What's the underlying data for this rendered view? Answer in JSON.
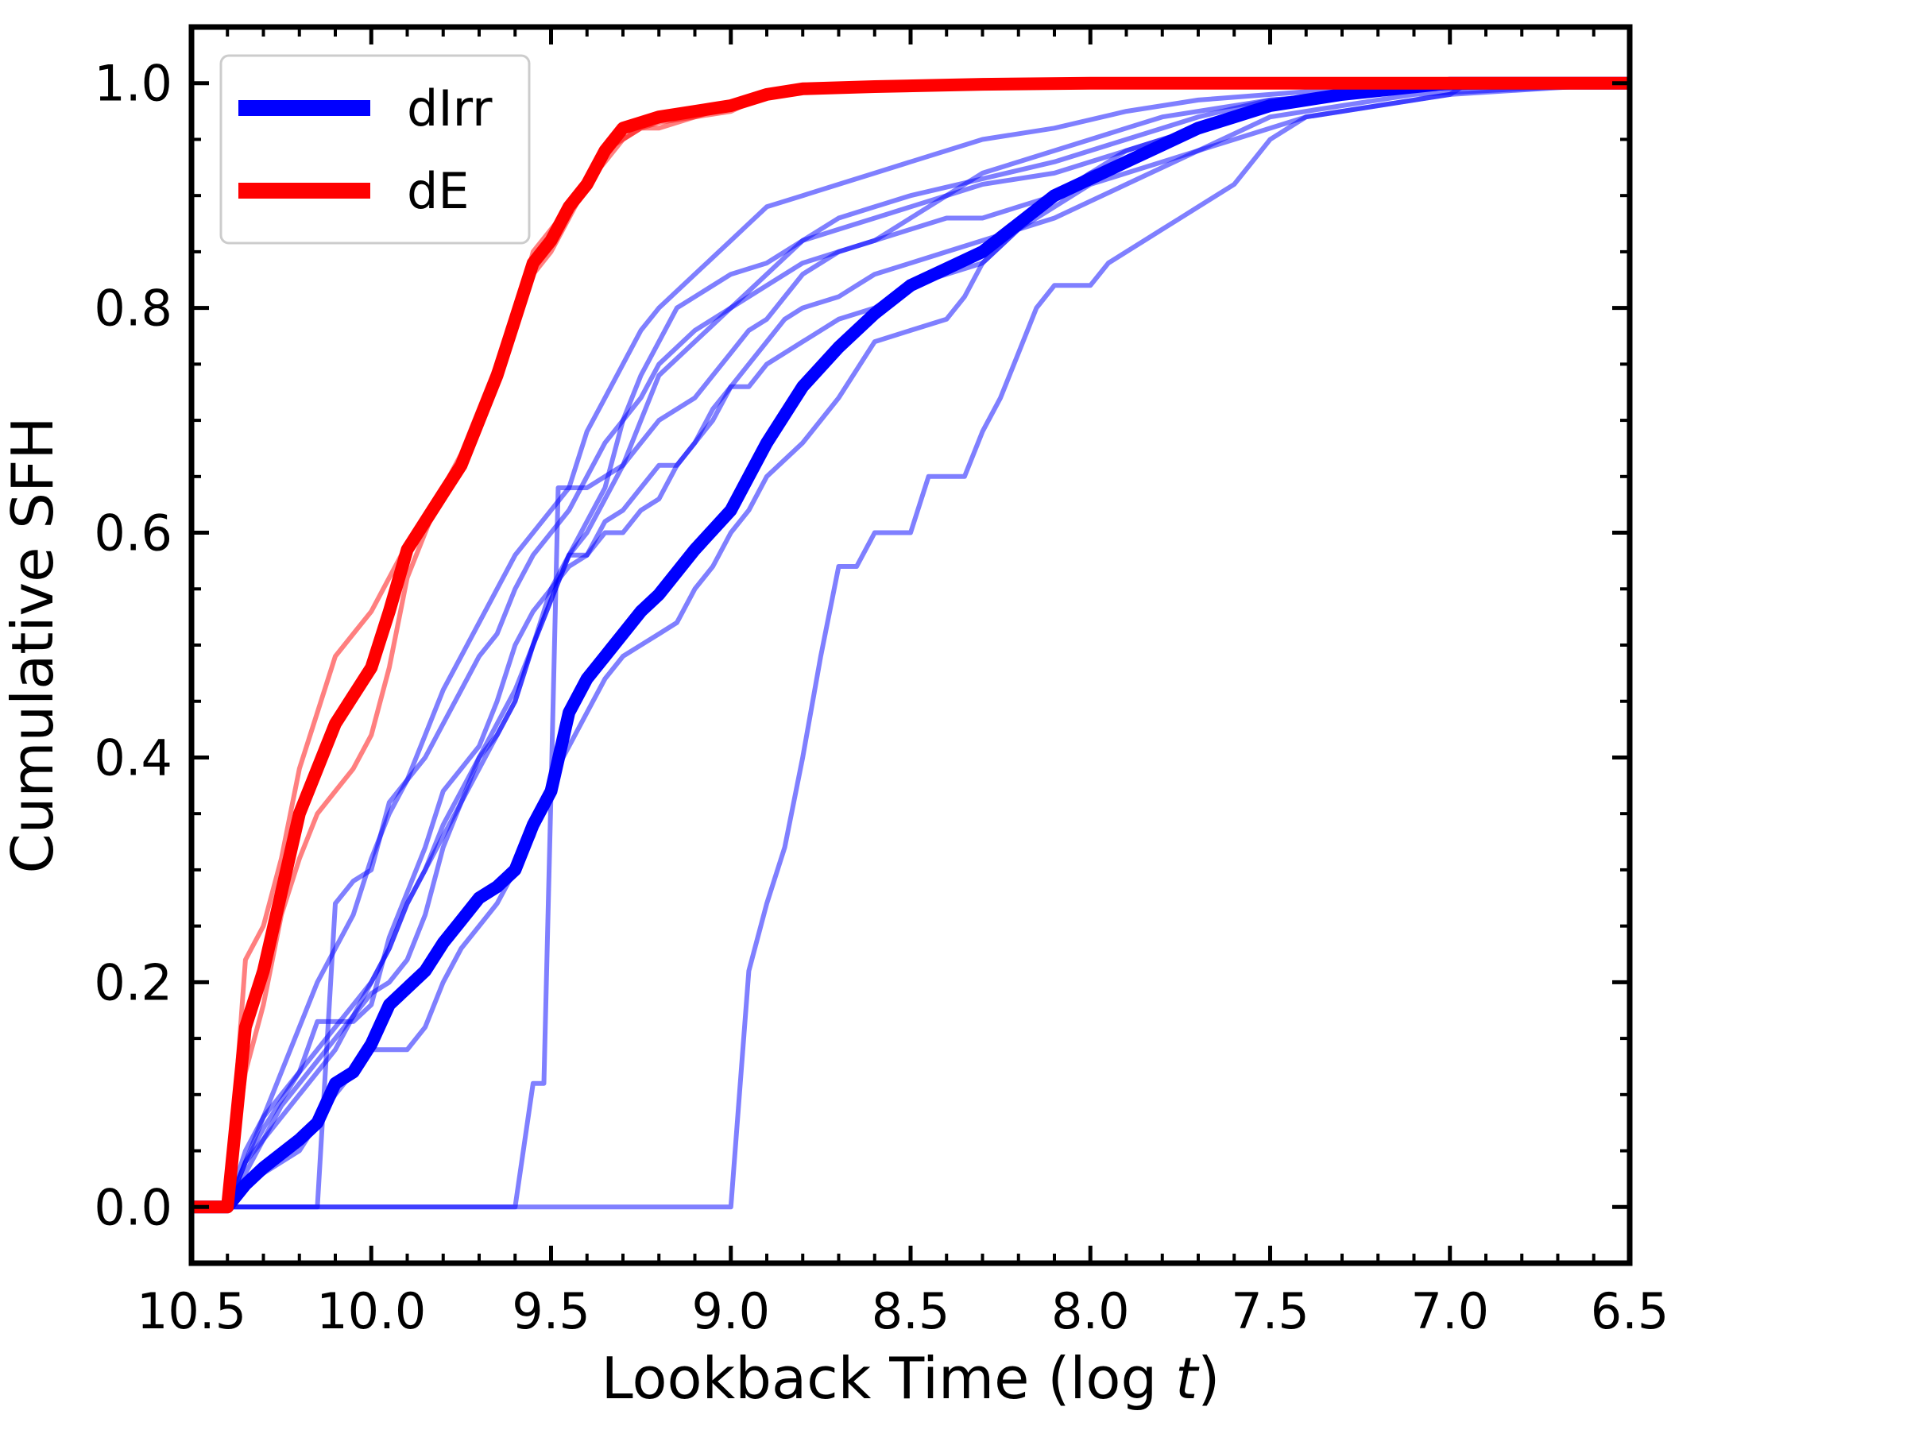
{
  "chart_data": {
    "type": "line",
    "xlabel_text": "Lookback Time (log ",
    "xlabel_var": "t",
    "xlabel_close": ")",
    "ylabel": "Cumulative SFH",
    "xlim": [
      10.5,
      6.5
    ],
    "ylim": [
      -0.05,
      1.05
    ],
    "x_ticks": [
      "10.5",
      "10.0",
      "9.5",
      "9.0",
      "8.5",
      "8.0",
      "7.5",
      "7.0",
      "6.5"
    ],
    "y_ticks": [
      "0.0",
      "0.2",
      "0.4",
      "0.6",
      "0.8",
      "1.0"
    ],
    "legend_position": "top-left",
    "colors": {
      "dIrr": "#0000ff",
      "dE": "#ff0000"
    },
    "legend": [
      {
        "label": "dIrr",
        "color": "#0000ff"
      },
      {
        "label": "dE",
        "color": "#ff0000"
      }
    ],
    "series": [
      {
        "name": "dIrr",
        "role": "mean",
        "color": "#0000ff",
        "x": [
          10.5,
          10.4,
          10.35,
          10.3,
          10.2,
          10.15,
          10.1,
          10.05,
          10.0,
          9.95,
          9.9,
          9.85,
          9.8,
          9.75,
          9.7,
          9.65,
          9.6,
          9.55,
          9.5,
          9.45,
          9.4,
          9.35,
          9.3,
          9.25,
          9.2,
          9.1,
          9.0,
          8.95,
          8.9,
          8.8,
          8.7,
          8.6,
          8.5,
          8.4,
          8.3,
          8.2,
          8.1,
          8.0,
          7.9,
          7.8,
          7.7,
          7.6,
          7.5,
          7.3,
          7.0,
          6.5
        ],
        "y": [
          0,
          0,
          0.02,
          0.035,
          0.06,
          0.075,
          0.11,
          0.12,
          0.145,
          0.18,
          0.195,
          0.21,
          0.235,
          0.255,
          0.275,
          0.285,
          0.3,
          0.34,
          0.37,
          0.44,
          0.47,
          0.49,
          0.51,
          0.53,
          0.545,
          0.585,
          0.62,
          0.65,
          0.68,
          0.73,
          0.765,
          0.795,
          0.82,
          0.835,
          0.85,
          0.875,
          0.9,
          0.915,
          0.93,
          0.945,
          0.96,
          0.97,
          0.98,
          0.99,
          1.0,
          1.0
        ]
      },
      {
        "name": "dE",
        "role": "mean",
        "color": "#ff0000",
        "x": [
          10.5,
          10.4,
          10.35,
          10.3,
          10.2,
          10.15,
          10.1,
          10.05,
          10.0,
          9.95,
          9.9,
          9.85,
          9.8,
          9.75,
          9.7,
          9.65,
          9.6,
          9.55,
          9.5,
          9.45,
          9.4,
          9.35,
          9.3,
          9.25,
          9.2,
          9.1,
          9.0,
          8.9,
          8.8,
          8.6,
          8.3,
          8.0,
          7.5,
          7.0,
          6.5
        ],
        "y": [
          0,
          0,
          0.16,
          0.21,
          0.35,
          0.39,
          0.43,
          0.455,
          0.48,
          0.53,
          0.585,
          0.61,
          0.635,
          0.66,
          0.7,
          0.74,
          0.79,
          0.84,
          0.86,
          0.89,
          0.91,
          0.94,
          0.96,
          0.965,
          0.97,
          0.975,
          0.98,
          0.99,
          0.995,
          0.997,
          0.999,
          1.0,
          1.0,
          1.0,
          1.0
        ]
      },
      {
        "name": "",
        "role": "individual",
        "color": "#0000ff",
        "x": [
          10.5,
          10.4,
          10.35,
          10.3,
          10.25,
          10.2,
          10.15,
          10.1,
          10.05,
          10.0,
          9.95,
          9.9,
          9.85,
          9.8,
          9.75,
          9.7,
          9.65,
          9.6,
          9.55,
          9.5,
          9.45,
          9.4,
          9.35,
          9.3,
          9.25,
          9.2,
          9.1,
          9.0,
          8.95,
          8.9,
          8.8,
          8.7,
          8.6,
          8.5,
          8.3,
          8.1,
          7.9,
          7.7,
          7.5,
          7.3,
          7.1,
          6.5
        ],
        "y": [
          0,
          0,
          0.04,
          0.08,
          0.12,
          0.16,
          0.2,
          0.23,
          0.26,
          0.31,
          0.35,
          0.38,
          0.42,
          0.46,
          0.49,
          0.52,
          0.55,
          0.58,
          0.6,
          0.62,
          0.64,
          0.69,
          0.72,
          0.75,
          0.78,
          0.8,
          0.83,
          0.86,
          0.875,
          0.89,
          0.9,
          0.91,
          0.92,
          0.93,
          0.95,
          0.96,
          0.975,
          0.985,
          0.99,
          0.995,
          1.0,
          1.0
        ]
      },
      {
        "name": "",
        "role": "individual",
        "color": "#0000ff",
        "x": [
          10.5,
          10.4,
          10.35,
          10.3,
          10.2,
          10.1,
          10.05,
          10.0,
          9.95,
          9.9,
          9.85,
          9.8,
          9.75,
          9.7,
          9.65,
          9.6,
          9.55,
          9.5,
          9.45,
          9.4,
          9.35,
          9.3,
          9.25,
          9.2,
          9.1,
          9.0,
          8.9,
          8.8,
          8.7,
          8.6,
          8.5,
          8.3,
          8.1,
          7.9,
          7.7,
          7.5,
          7.3,
          7.1,
          6.5
        ],
        "y": [
          0,
          0,
          0.04,
          0.06,
          0.1,
          0.14,
          0.17,
          0.2,
          0.23,
          0.27,
          0.3,
          0.34,
          0.37,
          0.4,
          0.43,
          0.46,
          0.5,
          0.54,
          0.58,
          0.6,
          0.63,
          0.66,
          0.7,
          0.74,
          0.77,
          0.8,
          0.83,
          0.86,
          0.88,
          0.89,
          0.9,
          0.915,
          0.93,
          0.95,
          0.97,
          0.985,
          0.99,
          0.995,
          1.0
        ]
      },
      {
        "name": "",
        "role": "individual",
        "color": "#0000ff",
        "x": [
          10.5,
          10.4,
          10.35,
          10.3,
          10.25,
          10.2,
          10.15,
          10.1,
          10.05,
          10.0,
          9.95,
          9.9,
          9.85,
          9.8,
          9.75,
          9.7,
          9.65,
          9.6,
          9.55,
          9.5,
          9.45,
          9.4,
          9.35,
          9.3,
          9.25,
          9.2,
          9.15,
          9.1,
          9.0,
          8.9,
          8.8,
          8.7,
          8.6,
          8.5,
          8.4,
          8.3,
          8.1,
          7.9,
          7.7,
          7.5,
          7.3,
          7.1,
          6.5
        ],
        "y": [
          0,
          0,
          0.03,
          0.06,
          0.09,
          0.11,
          0.13,
          0.15,
          0.17,
          0.19,
          0.2,
          0.22,
          0.26,
          0.32,
          0.36,
          0.4,
          0.42,
          0.45,
          0.5,
          0.54,
          0.58,
          0.61,
          0.64,
          0.7,
          0.74,
          0.77,
          0.8,
          0.81,
          0.83,
          0.84,
          0.86,
          0.87,
          0.88,
          0.89,
          0.9,
          0.91,
          0.92,
          0.94,
          0.96,
          0.98,
          0.99,
          0.995,
          1.0
        ]
      },
      {
        "name": "",
        "role": "individual",
        "color": "#0000ff",
        "x": [
          10.5,
          10.4,
          10.35,
          10.3,
          10.2,
          10.15,
          10.05,
          10.0,
          9.95,
          9.85,
          9.8,
          9.75,
          9.7,
          9.65,
          9.6,
          9.55,
          9.5,
          9.45,
          9.4,
          9.35,
          9.3,
          9.25,
          9.2,
          9.15,
          9.1,
          9.05,
          9.0,
          8.95,
          8.9,
          8.85,
          8.8,
          8.7,
          8.65,
          8.6,
          8.5,
          8.4,
          8.3,
          8.1,
          7.9,
          7.7,
          7.5,
          7.3,
          7.1,
          6.5
        ],
        "y": [
          0,
          0,
          0.04,
          0.07,
          0.12,
          0.165,
          0.165,
          0.18,
          0.24,
          0.32,
          0.37,
          0.39,
          0.41,
          0.45,
          0.5,
          0.53,
          0.55,
          0.57,
          0.58,
          0.6,
          0.6,
          0.62,
          0.63,
          0.66,
          0.68,
          0.71,
          0.73,
          0.75,
          0.77,
          0.79,
          0.8,
          0.81,
          0.82,
          0.83,
          0.84,
          0.85,
          0.86,
          0.88,
          0.91,
          0.94,
          0.97,
          0.98,
          0.99,
          1.0
        ]
      },
      {
        "name": "",
        "role": "individual",
        "color": "#0000ff",
        "x": [
          10.5,
          10.4,
          10.35,
          10.3,
          10.25,
          10.15,
          10.1,
          10.05,
          10.0,
          9.95,
          9.9,
          9.85,
          9.8,
          9.75,
          9.7,
          9.65,
          9.6,
          9.55,
          9.5,
          9.45,
          9.4,
          9.35,
          9.3,
          9.25,
          9.2,
          9.15,
          9.1,
          9.05,
          9.0,
          8.95,
          8.9,
          8.8,
          8.7,
          8.6,
          8.5,
          8.4,
          8.3,
          8.2,
          8.1,
          8.0,
          7.9,
          7.7,
          7.5,
          7.3,
          7.0,
          6.5
        ],
        "y": [
          0,
          0,
          0.05,
          0.08,
          0.1,
          0.14,
          0.16,
          0.18,
          0.2,
          0.23,
          0.27,
          0.3,
          0.33,
          0.36,
          0.39,
          0.42,
          0.45,
          0.5,
          0.55,
          0.58,
          0.58,
          0.61,
          0.62,
          0.64,
          0.66,
          0.66,
          0.68,
          0.7,
          0.73,
          0.73,
          0.75,
          0.77,
          0.79,
          0.8,
          0.82,
          0.83,
          0.84,
          0.87,
          0.9,
          0.92,
          0.93,
          0.96,
          0.98,
          0.99,
          1.0,
          1.0
        ]
      },
      {
        "name": "",
        "role": "individual",
        "color": "#0000ff",
        "x": [
          10.5,
          10.4,
          10.35,
          10.3,
          10.2,
          10.1,
          10.05,
          10.0,
          9.95,
          9.9,
          9.85,
          9.8,
          9.75,
          9.7,
          9.65,
          9.6,
          9.55,
          9.5,
          9.45,
          9.4,
          9.35,
          9.3,
          9.25,
          9.2,
          9.15,
          9.1,
          9.05,
          9.0,
          8.95,
          8.9,
          8.8,
          8.7,
          8.6,
          8.5,
          8.4,
          8.35,
          8.3,
          8.2,
          8.1,
          8.0,
          7.9,
          7.8,
          7.6,
          7.4,
          7.2,
          7.0,
          6.5
        ],
        "y": [
          0,
          0,
          0.02,
          0.03,
          0.05,
          0.1,
          0.12,
          0.14,
          0.14,
          0.14,
          0.16,
          0.2,
          0.23,
          0.25,
          0.27,
          0.3,
          0.33,
          0.38,
          0.41,
          0.44,
          0.47,
          0.49,
          0.5,
          0.51,
          0.52,
          0.55,
          0.57,
          0.6,
          0.62,
          0.65,
          0.68,
          0.72,
          0.77,
          0.78,
          0.79,
          0.81,
          0.84,
          0.87,
          0.89,
          0.91,
          0.92,
          0.93,
          0.95,
          0.97,
          0.98,
          0.99,
          1.0
        ]
      },
      {
        "name": "",
        "role": "individual",
        "color": "#0000ff",
        "x": [
          10.5,
          10.15,
          10.1,
          10.05,
          10.0,
          9.95,
          9.9,
          9.85,
          9.8,
          9.75,
          9.7,
          9.65,
          9.6,
          9.55,
          9.5,
          9.45,
          9.4,
          9.35,
          9.3,
          9.25,
          9.2,
          9.1,
          9.0,
          8.9,
          8.8,
          8.7,
          8.6,
          8.5,
          8.4,
          8.3,
          8.2,
          8.1,
          8.0,
          7.9,
          7.7,
          7.5,
          7.3,
          7.1,
          6.5
        ],
        "y": [
          0,
          0,
          0.27,
          0.29,
          0.3,
          0.36,
          0.38,
          0.4,
          0.43,
          0.46,
          0.49,
          0.51,
          0.55,
          0.58,
          0.6,
          0.62,
          0.65,
          0.68,
          0.7,
          0.72,
          0.75,
          0.78,
          0.8,
          0.82,
          0.84,
          0.85,
          0.86,
          0.87,
          0.88,
          0.88,
          0.89,
          0.9,
          0.92,
          0.94,
          0.96,
          0.98,
          0.99,
          0.995,
          1.0
        ]
      },
      {
        "name": "",
        "role": "individual",
        "color": "#0000ff",
        "x": [
          10.5,
          9.6,
          9.55,
          9.52,
          9.5,
          9.48,
          9.45,
          9.4,
          9.35,
          9.3,
          9.25,
          9.2,
          9.1,
          9.05,
          9.0,
          8.95,
          8.9,
          8.85,
          8.8,
          8.7,
          8.6,
          8.5,
          8.4,
          8.3,
          8.2,
          8.1,
          8.0,
          7.9,
          7.8,
          7.6,
          7.5,
          7.3,
          7.1,
          7.0,
          6.5
        ],
        "y": [
          0,
          0,
          0.11,
          0.11,
          0.37,
          0.64,
          0.64,
          0.64,
          0.65,
          0.66,
          0.68,
          0.7,
          0.72,
          0.74,
          0.76,
          0.78,
          0.79,
          0.81,
          0.83,
          0.85,
          0.86,
          0.88,
          0.9,
          0.92,
          0.93,
          0.94,
          0.95,
          0.96,
          0.97,
          0.98,
          0.985,
          0.99,
          0.995,
          1.0,
          1.0
        ]
      },
      {
        "name": "",
        "role": "individual",
        "color": "#0000ff",
        "x": [
          10.5,
          9.0,
          8.95,
          8.9,
          8.85,
          8.8,
          8.75,
          8.7,
          8.65,
          8.6,
          8.55,
          8.5,
          8.45,
          8.4,
          8.35,
          8.3,
          8.25,
          8.2,
          8.15,
          8.1,
          8.05,
          8.0,
          7.95,
          7.9,
          7.85,
          7.8,
          7.75,
          7.7,
          7.65,
          7.6,
          7.55,
          7.5,
          7.45,
          7.4,
          7.3,
          7.2,
          7.1,
          7.0,
          6.95,
          6.5
        ],
        "y": [
          0,
          0,
          0.21,
          0.27,
          0.32,
          0.4,
          0.49,
          0.57,
          0.57,
          0.6,
          0.6,
          0.6,
          0.65,
          0.65,
          0.65,
          0.69,
          0.72,
          0.76,
          0.8,
          0.82,
          0.82,
          0.82,
          0.84,
          0.85,
          0.86,
          0.87,
          0.88,
          0.89,
          0.9,
          0.91,
          0.93,
          0.95,
          0.96,
          0.97,
          0.975,
          0.98,
          0.985,
          0.99,
          1.0,
          1.0
        ]
      },
      {
        "name": "",
        "role": "individual",
        "color": "#ff0000",
        "x": [
          10.5,
          10.4,
          10.35,
          10.3,
          10.25,
          10.2,
          10.15,
          10.1,
          10.05,
          10.0,
          9.95,
          9.9,
          9.85,
          9.8,
          9.75,
          9.7,
          9.65,
          9.6,
          9.55,
          9.5,
          9.45,
          9.4,
          9.35,
          9.3,
          9.25,
          9.2,
          9.1,
          9.0,
          8.9,
          8.8,
          8.6,
          8.3,
          8.0,
          7.5,
          7.0,
          6.5
        ],
        "y": [
          0,
          0,
          0.22,
          0.25,
          0.31,
          0.39,
          0.44,
          0.49,
          0.51,
          0.53,
          0.56,
          0.59,
          0.61,
          0.63,
          0.66,
          0.7,
          0.74,
          0.79,
          0.85,
          0.87,
          0.89,
          0.91,
          0.94,
          0.95,
          0.96,
          0.965,
          0.97,
          0.975,
          0.99,
          0.995,
          0.997,
          0.999,
          1.0,
          1.0,
          1.0,
          1.0
        ]
      },
      {
        "name": "",
        "role": "individual",
        "color": "#ff0000",
        "x": [
          10.5,
          10.4,
          10.35,
          10.3,
          10.25,
          10.2,
          10.15,
          10.1,
          10.05,
          10.0,
          9.95,
          9.9,
          9.85,
          9.8,
          9.75,
          9.7,
          9.65,
          9.6,
          9.55,
          9.5,
          9.45,
          9.4,
          9.35,
          9.3,
          9.25,
          9.2,
          9.1,
          9.0,
          8.9,
          8.8,
          8.6,
          8.3,
          8.0,
          7.5,
          7.0,
          6.5
        ],
        "y": [
          0,
          0,
          0.12,
          0.18,
          0.26,
          0.31,
          0.35,
          0.37,
          0.39,
          0.42,
          0.48,
          0.56,
          0.6,
          0.64,
          0.67,
          0.71,
          0.75,
          0.8,
          0.83,
          0.85,
          0.88,
          0.91,
          0.93,
          0.95,
          0.96,
          0.96,
          0.97,
          0.98,
          0.99,
          0.995,
          0.997,
          0.999,
          1.0,
          1.0,
          1.0,
          1.0
        ]
      }
    ]
  }
}
